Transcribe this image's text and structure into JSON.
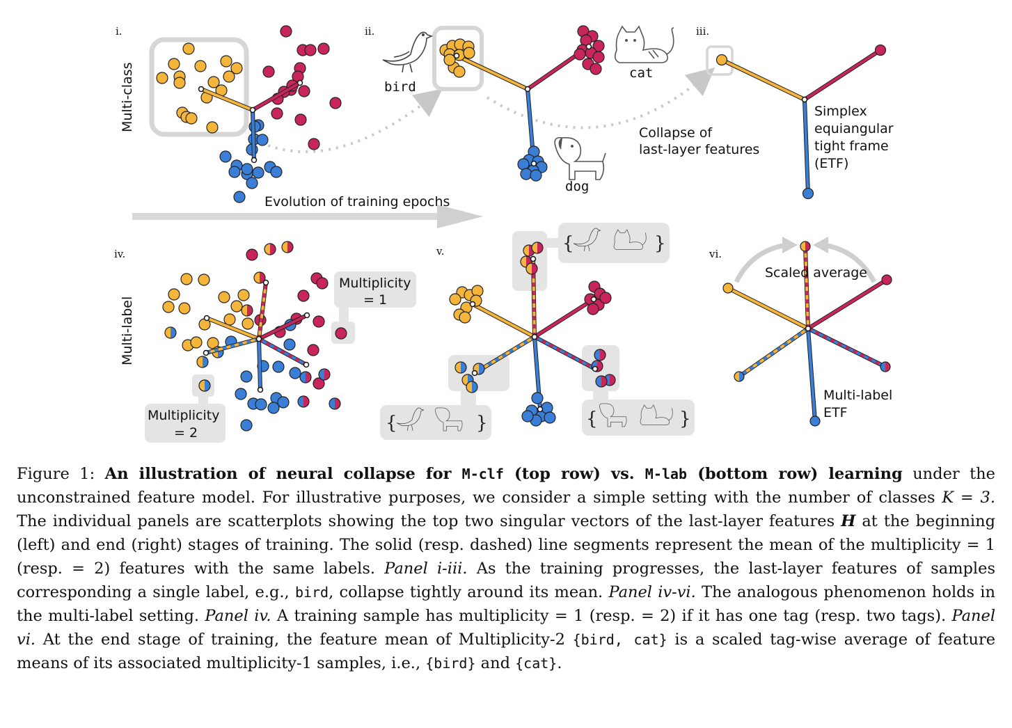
{
  "figure": {
    "panels": {
      "i": "i.",
      "ii": "ii.",
      "iii": "iii.",
      "iv": "iv.",
      "v": "v.",
      "vi": "vi."
    },
    "row_labels": {
      "top": "Multi-class",
      "bottom": "Multi-label"
    },
    "annotations": {
      "bird": "bird",
      "cat": "cat",
      "dog": "dog",
      "collapse_line1": "Collapse of",
      "collapse_line2": "last-layer features",
      "etf_line1": "Simplex",
      "etf_line2": "equiangular",
      "etf_line3": "tight frame",
      "etf_line4": "(ETF)",
      "evolution": "Evolution of training epochs",
      "mult1_line1": "Multiplicity",
      "mult1_line2": "= 1",
      "mult2_line1": "Multiplicity",
      "mult2_line2": "= 2",
      "scaled_average": "Scaled average",
      "ml_etf_line1": "Multi-label",
      "ml_etf_line2": "ETF",
      "brace_open": "{",
      "brace_close": "}"
    },
    "icons": [
      "bird-icon",
      "cat-icon",
      "dog-icon"
    ],
    "colors": {
      "bird": "#f5b53a",
      "cat": "#c8265a",
      "dog": "#3a7ed6",
      "callout_bg": "#e4e4e4",
      "arrow": "#c8c8c8"
    }
  },
  "caption": {
    "label": "Figure 1:",
    "title_p1": "An illustration of neural collapse for",
    "mclf": "M-clf",
    "title_p2": "(top row) vs.",
    "mlab": "M-lab",
    "title_p3": "(bottom row) learning",
    "s1": "under the unconstrained feature model. For illustrative purposes, we consider a simple setting with the number of classes",
    "k_eq": "K = 3.",
    "s2": "The individual panels are scatterplots showing the top two singular vectors of the last-layer features",
    "H": "H",
    "s3": "at the beginning (left) and end (right) stages of training. The solid (resp. dashed) line segments represent the mean of the multiplicity = 1 (resp. = 2) features with the same labels.",
    "p_i_iii": "Panel i-iii.",
    "s4": "As the training progresses, the last-layer features of samples corresponding a single label, e.g.,",
    "bird": "bird",
    "s5": ", collapse tightly around its mean.",
    "p_iv_vi": "Panel iv-vi.",
    "s6": "The analogous phenomenon holds in the multi-label setting.",
    "p_iv": "Panel iv.",
    "s7": "A training sample has multiplicity = 1 (resp. = 2) if it has one tag (resp. two tags).",
    "p_vi": "Panel vi.",
    "s8": "At the end stage of training, the feature mean of Multiplicity-2",
    "set_bird_cat": "{bird, cat}",
    "s9": "is a scaled tag-wise average of feature means of its associated multiplicity-1 samples, i.e.,",
    "set_bird": "{bird}",
    "and": "and",
    "set_cat": "{cat}",
    "end": "."
  }
}
